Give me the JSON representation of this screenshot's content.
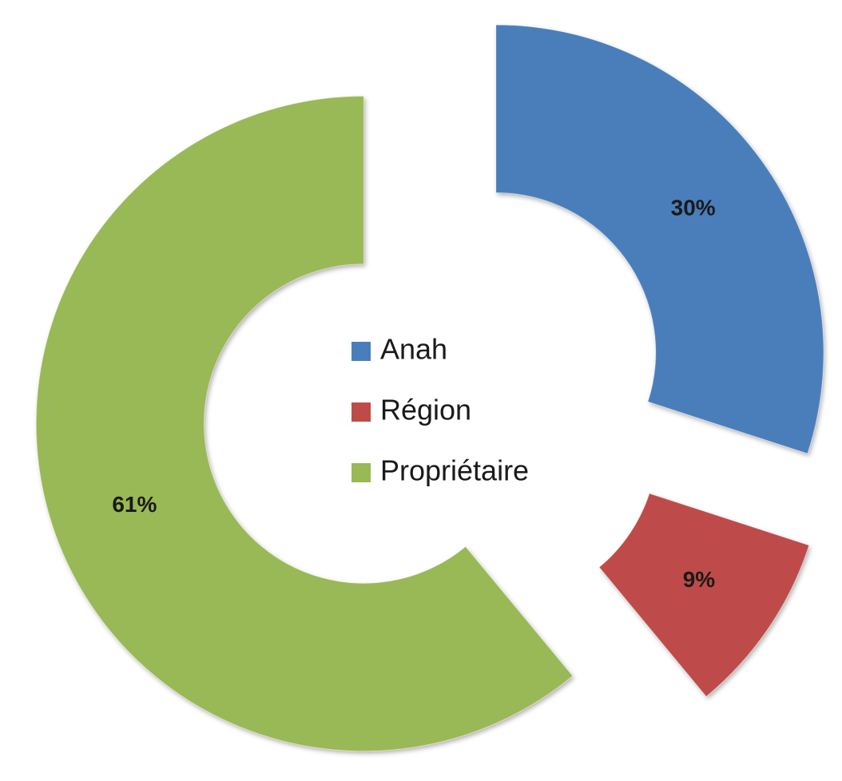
{
  "chart_data": {
    "type": "donut",
    "categories": [
      "Anah",
      "Région",
      "Propriétaire"
    ],
    "values": [
      30,
      9,
      61
    ],
    "value_labels": [
      "30%",
      "9%",
      "61%"
    ],
    "colors": [
      "#4a7ebb",
      "#be4b48",
      "#98b954"
    ]
  }
}
